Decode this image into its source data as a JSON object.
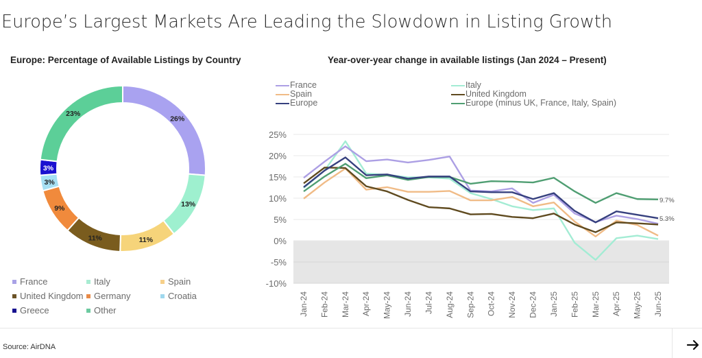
{
  "page": {
    "title": "Europe’s Largest Markets Are Leading the Slowdown in Listing Growth",
    "source": "Source: AirDNA",
    "next_icon": "arrow-right-icon"
  },
  "chart_data": [
    {
      "type": "pie",
      "variant": "donut",
      "title": "Europe: Percentage of Available Listings by Country",
      "categories": [
        "France",
        "Italy",
        "Spain",
        "United Kingdom",
        "Germany",
        "Croatia",
        "Greece",
        "Other"
      ],
      "values": [
        26,
        13,
        11,
        11,
        9,
        3,
        3,
        23
      ],
      "labels": [
        "26%",
        "13%",
        "11%",
        "11%",
        "9%",
        "3%",
        "3%",
        "23%"
      ],
      "colors": [
        "#a9a2f0",
        "#9ef0cf",
        "#f6d47a",
        "#7a5c1e",
        "#f08a3c",
        "#a6e0f4",
        "#1a10d0",
        "#5ccf98"
      ],
      "label_colors": [
        "#222222",
        "#222222",
        "#222222",
        "#222222",
        "#222222",
        "#222222",
        "#ffffff",
        "#222222"
      ],
      "legend": {
        "placement": "bottom",
        "items": [
          "France",
          "Italy",
          "Spain",
          "United Kingdom",
          "Germany",
          "Croatia",
          "Greece",
          "Other"
        ],
        "colors": [
          "#a9a2e6",
          "#a8ecd2",
          "#f6d08a",
          "#6b5327",
          "#e88a48",
          "#9fd8ee",
          "#17118f",
          "#6ccaa0"
        ]
      }
    },
    {
      "type": "line",
      "title": "Year-over-year change in available listings  (Jan 2024 – Present)",
      "xlabel": "",
      "ylabel": "",
      "x": [
        "Jan-24",
        "Feb-24",
        "Mar-24",
        "Apr-24",
        "May-24",
        "Jun-24",
        "Jul-24",
        "Aug-24",
        "Sep-24",
        "Oct-24",
        "Nov-24",
        "Dec-24",
        "Jan-25",
        "Feb-25",
        "Mar-25",
        "Apr-25",
        "May-25",
        "Jun-25"
      ],
      "ylim": [
        -10,
        25
      ],
      "yticks": [
        25,
        20,
        15,
        10,
        5,
        0,
        -5,
        -10
      ],
      "ytick_labels": [
        "25%",
        "20%",
        "15%",
        "10%",
        "5%",
        "0%",
        "-5%",
        "-10%"
      ],
      "grid": true,
      "negative_region_shaded": true,
      "negative_region_color": "#e6e6e6",
      "legend": {
        "placement": "top"
      },
      "series": [
        {
          "name": "Italy",
          "color": "#a3ecd4",
          "values": [
            12.4,
            16.5,
            23.4,
            15.8,
            15.5,
            14.9,
            14.9,
            14.6,
            11.2,
            9.8,
            8.1,
            7.2,
            7.6,
            -0.5,
            -4.5,
            0.6,
            1.2,
            0.4
          ]
        },
        {
          "name": "Spain",
          "color": "#f0bb86",
          "values": [
            9.9,
            13.7,
            17.0,
            12.0,
            12.6,
            11.5,
            11.5,
            11.7,
            9.5,
            9.5,
            10.3,
            8.1,
            9.0,
            4.5,
            1.0,
            4.7,
            3.7,
            1.2
          ]
        },
        {
          "name": "France",
          "color": "#ac9fe4",
          "values": [
            14.8,
            18.6,
            22.2,
            18.7,
            19.1,
            18.4,
            19.0,
            19.8,
            11.8,
            11.6,
            12.3,
            8.9,
            10.8,
            6.4,
            4.4,
            5.9,
            5.1,
            4.0
          ]
        },
        {
          "name": "United Kingdom",
          "color": "#5f4a1f",
          "values": [
            13.5,
            17.2,
            17.1,
            12.8,
            11.6,
            9.6,
            7.9,
            7.6,
            6.2,
            6.3,
            5.6,
            5.3,
            6.4,
            3.8,
            2.0,
            4.3,
            4.1,
            3.8
          ]
        },
        {
          "name": "Europe (minus UK, France, Italy, Spain)",
          "color": "#4f9e72",
          "values": [
            11.6,
            15.1,
            18.1,
            14.7,
            15.4,
            14.3,
            15.0,
            15.0,
            13.4,
            14.0,
            13.9,
            13.7,
            14.8,
            11.6,
            8.9,
            11.2,
            9.8,
            9.7
          ],
          "end_label": "9.7%"
        },
        {
          "name": "Europe",
          "color": "#36407e",
          "values": [
            12.6,
            16.5,
            19.6,
            15.4,
            15.6,
            14.6,
            15.1,
            15.1,
            11.6,
            11.4,
            11.4,
            9.8,
            11.2,
            7.0,
            4.3,
            6.9,
            6.1,
            5.3
          ],
          "end_label": "5.3%"
        }
      ],
      "legend_items": [
        {
          "name": "France",
          "color": "#ac9fe4"
        },
        {
          "name": "Spain",
          "color": "#f0bb86"
        },
        {
          "name": "Europe",
          "color": "#36407e"
        },
        {
          "name": "Italy",
          "color": "#a3ecd4"
        },
        {
          "name": "United Kingdom",
          "color": "#5f4a1f"
        },
        {
          "name": "Europe (minus UK, France, Italy, Spain)",
          "color": "#4f9e72"
        }
      ]
    }
  ]
}
